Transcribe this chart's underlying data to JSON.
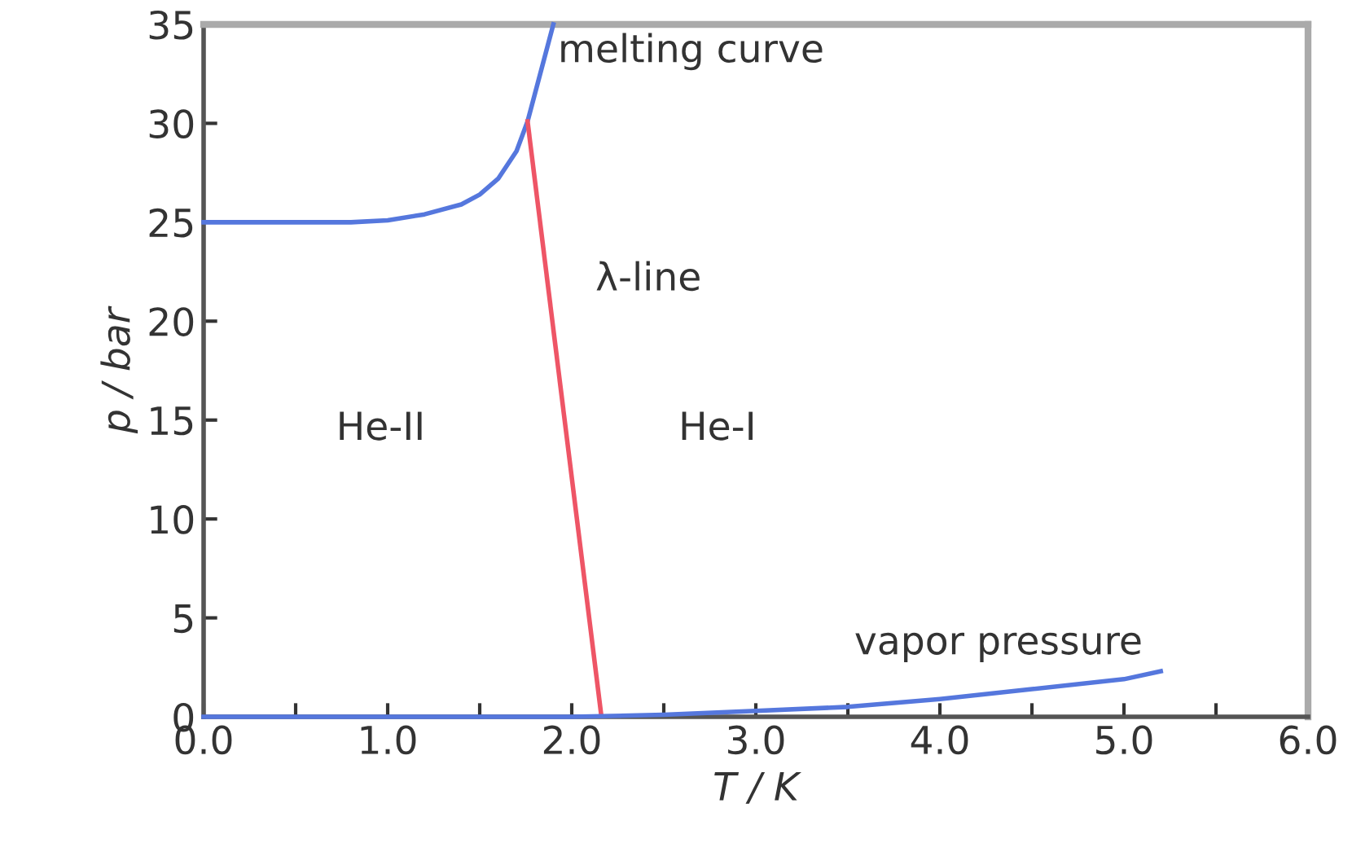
{
  "chart_data": {
    "type": "line",
    "xlabel": "T / K",
    "ylabel": "p / bar",
    "xlim": [
      0,
      6
    ],
    "ylim": [
      0,
      35
    ],
    "xticks": [
      {
        "value": 0,
        "label": "0.0"
      },
      {
        "value": 0.5,
        "label": null
      },
      {
        "value": 1,
        "label": "1.0"
      },
      {
        "value": 1.5,
        "label": null
      },
      {
        "value": 2,
        "label": "2.0"
      },
      {
        "value": 2.5,
        "label": null
      },
      {
        "value": 3,
        "label": "3.0"
      },
      {
        "value": 3.5,
        "label": null
      },
      {
        "value": 4,
        "label": "4.0"
      },
      {
        "value": 4.5,
        "label": null
      },
      {
        "value": 5,
        "label": "5.0"
      },
      {
        "value": 5.5,
        "label": null
      },
      {
        "value": 6,
        "label": "6.0"
      }
    ],
    "yticks": [
      0,
      5,
      10,
      15,
      20,
      25,
      30,
      35
    ],
    "series": [
      {
        "name": "melting curve",
        "color": "#5577dd",
        "x": [
          0,
          0.4,
          0.8,
          1.0,
          1.2,
          1.4,
          1.5,
          1.6,
          1.7,
          1.76,
          1.82,
          1.9
        ],
        "values": [
          25,
          25,
          25,
          25.1,
          25.4,
          25.9,
          26.4,
          27.2,
          28.6,
          30.1,
          32.2,
          35
        ]
      },
      {
        "name": "λ-line",
        "color": "#ee5566",
        "x": [
          1.76,
          2.16
        ],
        "values": [
          30.1,
          0.1
        ]
      },
      {
        "name": "vapor pressure",
        "color": "#5577dd",
        "x": [
          0,
          1.0,
          2.0,
          2.5,
          3.0,
          3.5,
          4.0,
          4.5,
          5.0,
          5.2
        ],
        "values": [
          0,
          0,
          0,
          0.1,
          0.3,
          0.5,
          0.9,
          1.4,
          1.9,
          2.3
        ]
      }
    ],
    "annotations": [
      "He-II",
      "He-I"
    ],
    "legend": false,
    "grid": false,
    "marker": "none",
    "line_style": "solid"
  }
}
